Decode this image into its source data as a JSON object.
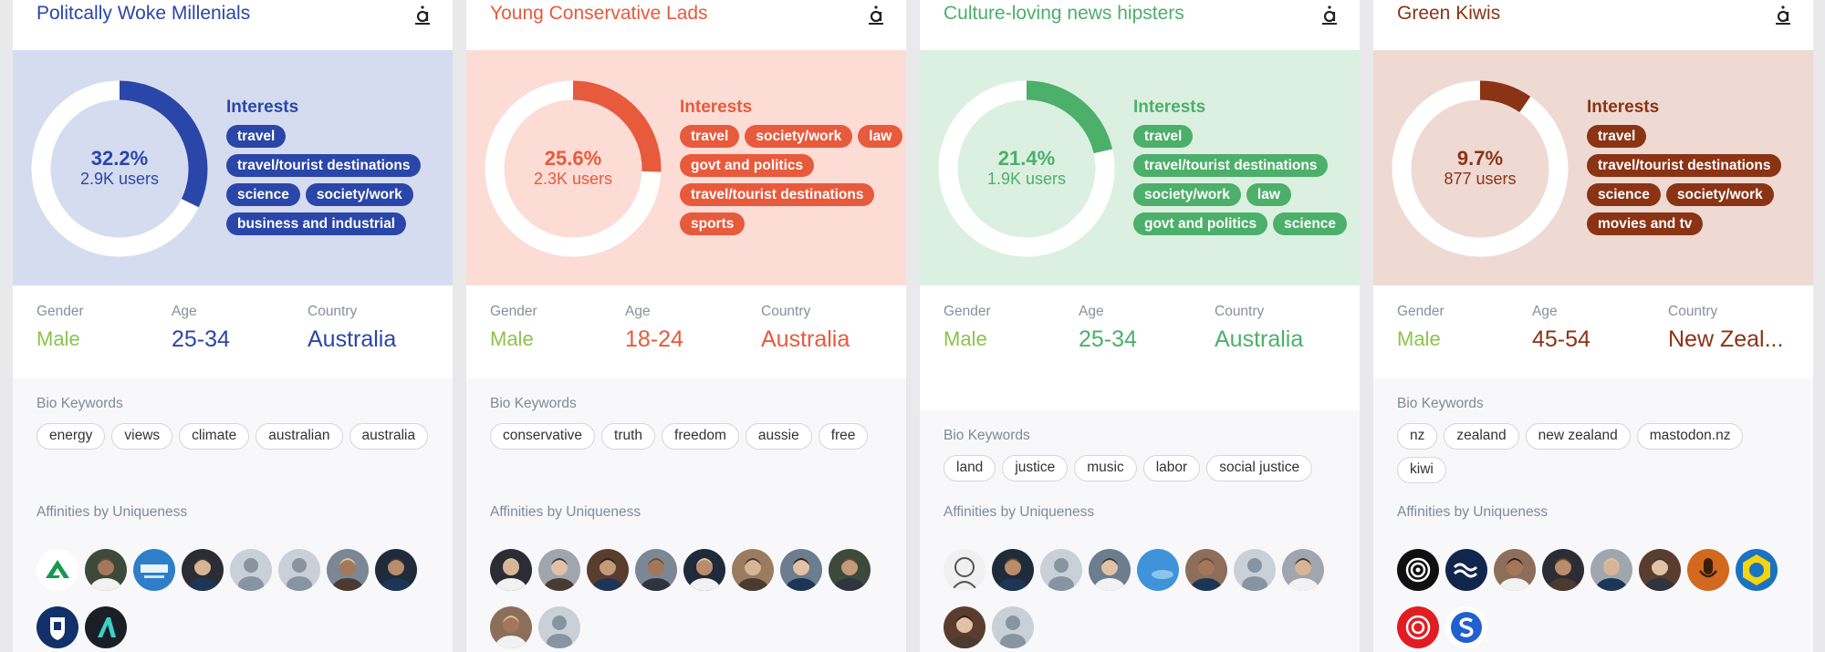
{
  "labels": {
    "interests": "Interests",
    "gender": "Gender",
    "age": "Age",
    "country": "Country",
    "bio_keywords": "Bio Keywords",
    "affinities": "Affinities by Uniqueness"
  },
  "cards": [
    {
      "title": "Politcally Woke Millenials",
      "color": "#2a46a8",
      "panel_bg": "#d6dcf0",
      "share": 0.322,
      "percent": "32.2%",
      "users": "2.9K users",
      "interests": [
        "travel",
        "travel/tourist destinations",
        "science",
        "society/work",
        "business and industrial"
      ],
      "gender": "Male",
      "age": "25-34",
      "country": "Australia",
      "keywords": [
        "energy",
        "views",
        "climate",
        "australian",
        "australia"
      ],
      "avatars": [
        "green-a-logo",
        "person",
        "business-badge",
        "person",
        "default",
        "default",
        "person",
        "person",
        "university-crest",
        "dark-a-logo"
      ]
    },
    {
      "title": "Young Conservative Lads",
      "color": "#e85a3c",
      "panel_bg": "#fcdcd5",
      "share": 0.256,
      "percent": "25.6%",
      "users": "2.3K users",
      "interests": [
        "travel",
        "society/work",
        "law",
        "govt and politics",
        "travel/tourist destinations",
        "sports"
      ],
      "gender": "Male",
      "age": "18-24",
      "country": "Australia",
      "keywords": [
        "conservative",
        "truth",
        "freedom",
        "aussie",
        "free"
      ],
      "avatars": [
        "person",
        "person",
        "person",
        "person",
        "person",
        "person",
        "person",
        "person",
        "person",
        "default"
      ]
    },
    {
      "title": "Culture-loving news hipsters",
      "color": "#4caf6a",
      "panel_bg": "#dcf0e2",
      "share": 0.214,
      "percent": "21.4%",
      "users": "1.9K users",
      "interests": [
        "travel",
        "travel/tourist destinations",
        "society/work",
        "law",
        "govt and politics",
        "science"
      ],
      "gender": "Male",
      "age": "25-34",
      "country": "Australia",
      "keywords": [
        "land",
        "justice",
        "music",
        "labor",
        "social justice"
      ],
      "avatars": [
        "sketch",
        "person",
        "default",
        "person",
        "sky",
        "person",
        "default",
        "person",
        "person",
        "default"
      ]
    },
    {
      "title": "Green Kiwis",
      "color": "#8b3315",
      "panel_bg": "#eedad3",
      "share": 0.097,
      "percent": "9.7%",
      "users": "877 users",
      "interests": [
        "travel",
        "travel/tourist destinations",
        "science",
        "society/work",
        "movies and tv"
      ],
      "gender": "Male",
      "age": "45-54",
      "country": "New Zeal...",
      "keywords": [
        "nz",
        "zealand",
        "new zealand",
        "mastodon.nz",
        "kiwi"
      ],
      "avatars": [
        "rnz-logo",
        "waves-logo",
        "person",
        "person",
        "person",
        "person",
        "microphone",
        "cd-badge",
        "red-rings-logo",
        "s-logo"
      ]
    }
  ]
}
